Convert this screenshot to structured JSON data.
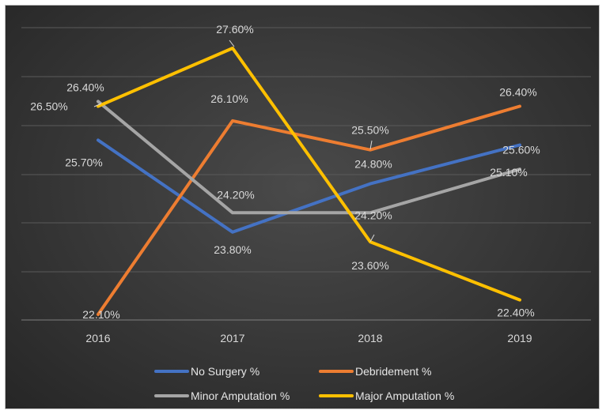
{
  "chart_data": {
    "type": "line",
    "title": "",
    "xlabel": "",
    "ylabel": "",
    "categories": [
      "2016",
      "2017",
      "2018",
      "2019"
    ],
    "ylim": [
      21.5,
      28.0
    ],
    "grid": true,
    "legend_position": "bottom",
    "series": [
      {
        "name": "No Surgery %",
        "color": "#4472C4",
        "values": [
          25.7,
          23.8,
          24.8,
          25.6
        ],
        "labels": [
          "25.70%",
          "23.80%",
          "24.80%",
          "25.60%"
        ]
      },
      {
        "name": "Debridement %",
        "color": "#ED7D31",
        "values": [
          22.1,
          26.1,
          25.5,
          26.4
        ],
        "labels": [
          "22.10%",
          "26.10%",
          "25.50%",
          "26.40%"
        ]
      },
      {
        "name": "Minor Amputation %",
        "color": "#A5A5A5",
        "values": [
          26.5,
          24.2,
          24.2,
          25.1
        ],
        "labels": [
          "26.50%",
          "24.20%",
          "24.20%",
          "25.10%"
        ]
      },
      {
        "name": "Major Amputation %",
        "color": "#FFC000",
        "values": [
          26.4,
          27.6,
          23.6,
          22.4
        ],
        "labels": [
          "26.40%",
          "27.60%",
          "23.60%",
          "22.40%"
        ]
      }
    ]
  }
}
